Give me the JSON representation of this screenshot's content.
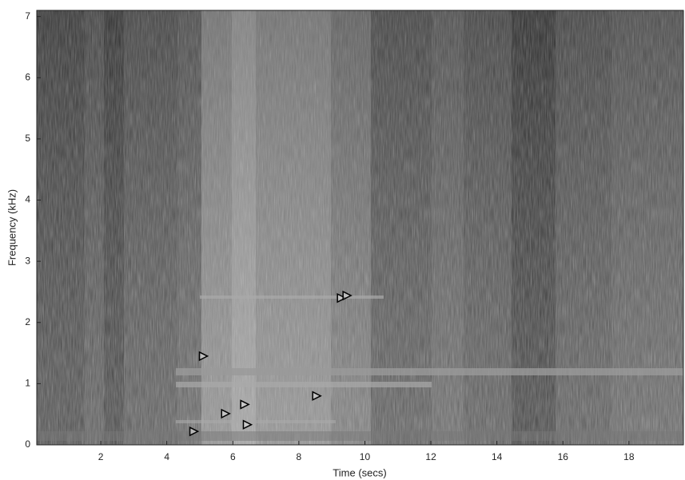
{
  "chart_data": {
    "type": "scatter",
    "xlabel": "Time (secs)",
    "ylabel": "Frequency (kHz)",
    "xlim": [
      0.06,
      19.65
    ],
    "ylim": [
      0,
      7.1
    ],
    "xticks": [
      2,
      4,
      6,
      8,
      10,
      12,
      14,
      16,
      18
    ],
    "yticks": [
      0,
      1,
      2,
      3,
      4,
      5,
      6,
      7
    ],
    "series": [
      {
        "color": "#000000",
        "x": [
          4.82,
          5.11,
          5.78,
          6.36,
          6.44,
          8.54,
          9.29,
          9.46
        ],
        "values": [
          0.22,
          1.45,
          0.51,
          0.66,
          0.33,
          0.8,
          2.4,
          2.44
        ]
      }
    ]
  }
}
